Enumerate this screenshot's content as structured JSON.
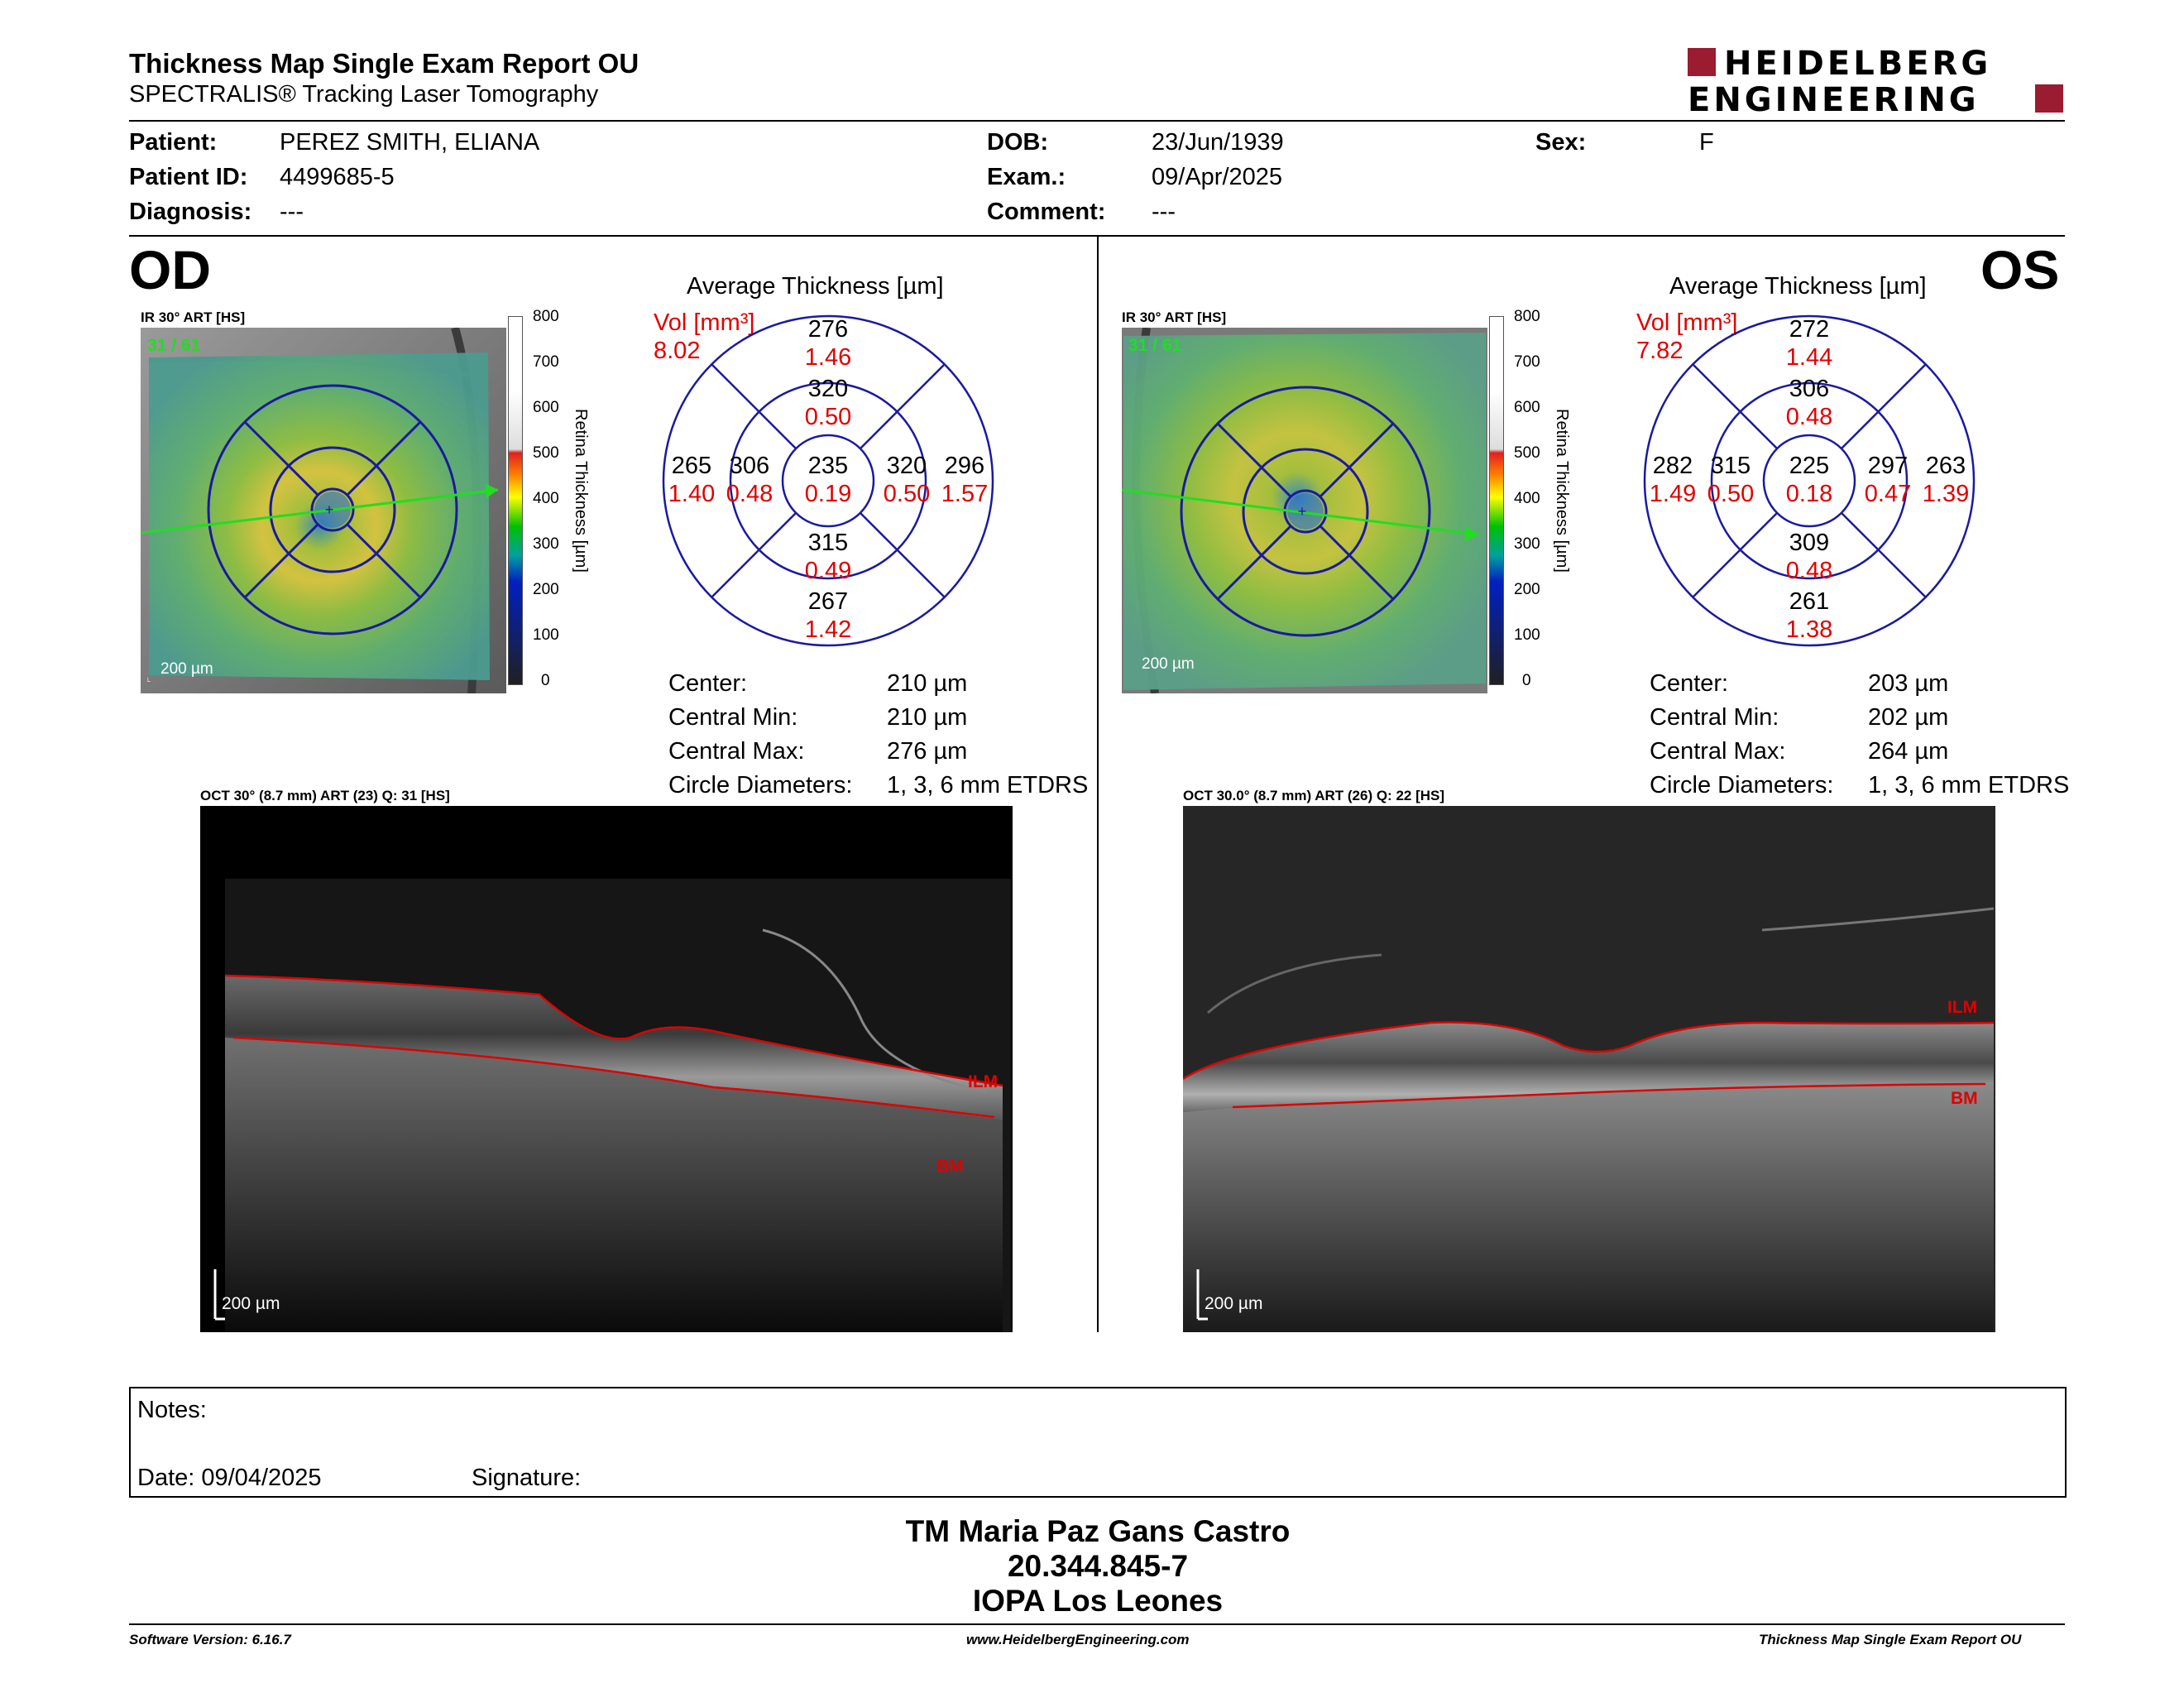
{
  "header": {
    "title": "Thickness Map Single Exam Report OU",
    "subtitle": "SPECTRALIS® Tracking Laser Tomography",
    "logo_line1": "HEIDELBERG",
    "logo_line2": "ENGINEERING"
  },
  "patient": {
    "patient_label": "Patient:",
    "patient_value": "PEREZ SMITH, ELIANA",
    "id_label": "Patient ID:",
    "id_value": "4499685-5",
    "diag_label": "Diagnosis:",
    "diag_value": "---",
    "dob_label": "DOB:",
    "dob_value": "23/Jun/1939",
    "exam_label": "Exam.:",
    "exam_value": "09/Apr/2025",
    "comment_label": "Comment:",
    "comment_value": "---",
    "sex_label": "Sex:",
    "sex_value": "F"
  },
  "od": {
    "eye": "OD",
    "ir_label": "IR 30° ART [HS]",
    "frames": "31 / 61",
    "scale": "200 µm",
    "avg_title": "Average Thickness [µm]",
    "vol_label": "Vol [mm³]",
    "vol_value": "8.02",
    "sectors": {
      "outer_sup": "276",
      "outer_sup_vol": "1.46",
      "inner_sup": "320",
      "inner_sup_vol": "0.50",
      "outer_temp": "265",
      "outer_temp_vol": "1.40",
      "inner_temp": "306",
      "inner_temp_vol": "0.48",
      "center": "235",
      "center_vol": "0.19",
      "inner_nas": "320",
      "inner_nas_vol": "0.50",
      "outer_nas": "296",
      "outer_nas_vol": "1.57",
      "inner_inf": "315",
      "inner_inf_vol": "0.49",
      "outer_inf": "267",
      "outer_inf_vol": "1.42"
    },
    "stats": {
      "center_label": "Center:",
      "center_value": "210 µm",
      "min_label": "Central Min:",
      "min_value": "210 µm",
      "max_label": "Central Max:",
      "max_value": "276 µm",
      "diam_label": "Circle Diameters:",
      "diam_value": "1, 3, 6 mm ETDRS"
    },
    "oct_label": "OCT 30° (8.7 mm) ART (23) Q: 31 [HS]",
    "oct_scale": "200 µm",
    "ilm": "ILM",
    "bm": "BM"
  },
  "os": {
    "eye": "OS",
    "ir_label": "IR 30° ART [HS]",
    "frames": "31 / 61",
    "scale": "200 µm",
    "avg_title": "Average Thickness [µm]",
    "vol_label": "Vol [mm³]",
    "vol_value": "7.82",
    "sectors": {
      "outer_sup": "272",
      "outer_sup_vol": "1.44",
      "inner_sup": "306",
      "inner_sup_vol": "0.48",
      "outer_temp": "282",
      "outer_temp_vol": "1.49",
      "inner_temp": "315",
      "inner_temp_vol": "0.50",
      "center": "225",
      "center_vol": "0.18",
      "inner_nas": "297",
      "inner_nas_vol": "0.47",
      "outer_nas": "263",
      "outer_nas_vol": "1.39",
      "inner_inf": "309",
      "inner_inf_vol": "0.48",
      "outer_inf": "261",
      "outer_inf_vol": "1.38"
    },
    "stats": {
      "center_label": "Center:",
      "center_value": "203 µm",
      "min_label": "Central Min:",
      "min_value": "202 µm",
      "max_label": "Central Max:",
      "max_value": "264 µm",
      "diam_label": "Circle Diameters:",
      "diam_value": "1, 3, 6 mm ETDRS"
    },
    "oct_label": "OCT 30.0° (8.7 mm) ART (26) Q: 22 [HS]",
    "oct_scale": "200 µm",
    "ilm": "ILM",
    "bm": "BM"
  },
  "colorbar": {
    "ticks": [
      "800",
      "700",
      "600",
      "500",
      "400",
      "300",
      "200",
      "100",
      "0"
    ],
    "label": "Retina  Thickness [µm]"
  },
  "notes": {
    "notes_label": "Notes:",
    "date_label": "Date: 09/04/2025",
    "signature_label": "Signature:"
  },
  "signature": {
    "line1": "TM Maria Paz Gans Castro",
    "line2": "20.344.845-7",
    "line3": "IOPA Los Leones"
  },
  "footer": {
    "software": "Software Version: 6.16.7",
    "website": "www.HeidelbergEngineering.com",
    "report": "Thickness Map Single Exam Report OU"
  },
  "colors": {
    "brand_red": "#9b1b30",
    "grid_blue": "#1a1aa0",
    "value_red": "#e00000",
    "scan_green": "#22dd22"
  }
}
